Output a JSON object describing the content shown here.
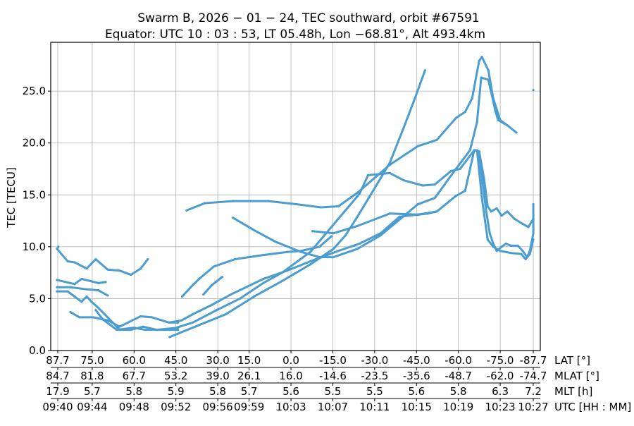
{
  "chart_data": {
    "type": "scatter",
    "title": [
      "Swarm B,  2026 − 01 − 24,  TEC southward,  orbit #67591",
      "Equator:  UTC 10 : 03 : 53,  LT 05.48h,  Lon −68.81°,  Alt 493.4km"
    ],
    "ylabel": "TEC [TECU]",
    "ylim": [
      0,
      29.7
    ],
    "xlim": [
      "09:40:02",
      "10:26:50"
    ],
    "yticks": [
      "0.0",
      "5.0",
      "10.0",
      "15.0",
      "20.0",
      "25.0"
    ],
    "grid": true,
    "color": "#4b9ccf",
    "x_axes": [
      {
        "label": "LAT [°]",
        "ticks": [
          "87.7",
          "75.0",
          "60.0",
          "45.0",
          "30.0",
          "15.0",
          "0.0",
          "-15.0",
          "-30.0",
          "-45.0",
          "-60.0",
          "-75.0",
          "-87.7"
        ]
      },
      {
        "label": "MLAT [°]",
        "ticks": [
          "84.7",
          "81.8",
          "67.7",
          "53.2",
          "39.0",
          "26.1",
          "16.0",
          "-14.6",
          "-23.5",
          "-35.6",
          "-48.7",
          "-62.0",
          "-74.7"
        ]
      },
      {
        "label": "MLT [h]",
        "ticks": [
          "17.9",
          "5.7",
          "5.8",
          "5.9",
          "5.8",
          "5.7",
          "5.6",
          "5.5",
          "5.5",
          "5.6",
          "5.8",
          "6.3",
          "7.2"
        ]
      },
      {
        "label": "UTC [HH : MM]",
        "ticks": [
          "09:40",
          "09:44",
          "09:48",
          "09:52",
          "09:56",
          "09:59",
          "10:03",
          "10:07",
          "10:11",
          "10:15",
          "10:19",
          "10:23",
          "10:27"
        ]
      }
    ],
    "tracks": [
      [
        [
          "09:40:46",
          10.0
        ],
        [
          "09:40:38",
          9.8
        ],
        [
          "09:41:39",
          8.6
        ],
        [
          "09:42:19",
          8.5
        ],
        [
          "09:43:28",
          7.9
        ],
        [
          "09:44:20",
          8.8
        ],
        [
          "09:45:29",
          7.8
        ],
        [
          "09:46:37",
          7.7
        ],
        [
          "09:47:42",
          7.3
        ],
        [
          "09:48:38",
          7.9
        ],
        [
          "09:49:19",
          8.8
        ]
      ],
      [
        [
          "09:40:38",
          6.8
        ],
        [
          "09:42:19",
          6.4
        ],
        [
          "09:42:59",
          6.9
        ],
        [
          "09:44:36",
          6.5
        ],
        [
          "09:45:17",
          6.6
        ]
      ],
      [
        [
          "09:40:38",
          6.1
        ],
        [
          "09:41:55",
          6.1
        ],
        [
          "09:43:28",
          5.9
        ],
        [
          "09:44:36",
          5.8
        ],
        [
          "09:45:29",
          5.3
        ]
      ],
      [
        [
          "09:40:38",
          5.7
        ],
        [
          "09:41:39",
          5.7
        ],
        [
          "09:42:19",
          5.2
        ],
        [
          "09:42:59",
          4.7
        ],
        [
          "09:43:28",
          5.2
        ],
        [
          "09:43:56",
          4.7
        ],
        [
          "09:44:36",
          4.1
        ],
        [
          "09:45:17",
          3.4
        ],
        [
          "09:45:57",
          2.7
        ],
        [
          "09:46:37",
          2.0
        ],
        [
          "09:47:42",
          2.0
        ],
        [
          "09:48:51",
          2.3
        ],
        [
          "09:50:11",
          2.0
        ],
        [
          "09:52:12",
          2.2
        ]
      ],
      [
        [
          "09:41:55",
          3.7
        ],
        [
          "09:42:47",
          3.2
        ],
        [
          "09:44:08",
          3.2
        ],
        [
          "09:45:29",
          2.9
        ],
        [
          "09:46:37",
          2.3
        ],
        [
          "09:48:38",
          3.3
        ],
        [
          "09:49:43",
          3.2
        ],
        [
          "09:51:20",
          2.7
        ],
        [
          "09:52:12",
          2.7
        ]
      ],
      [
        [
          "09:44:20",
          3.9
        ],
        [
          "09:45:01",
          3.0
        ],
        [
          "09:46:21",
          2.0
        ],
        [
          "09:47:58",
          2.2
        ],
        [
          "09:49:03",
          2.0
        ],
        [
          "09:50:11",
          2.0
        ],
        [
          "09:52:12",
          2.0
        ]
      ],
      [
        [
          "09:51:24",
          2.7
        ],
        [
          "09:52:32",
          2.9
        ],
        [
          "09:53:37",
          3.5
        ],
        [
          "09:55:26",
          4.4
        ],
        [
          "09:57:15",
          5.4
        ],
        [
          "10:00:21",
          6.9
        ],
        [
          "10:02:38",
          7.7
        ],
        [
          "10:04:51",
          8.6
        ],
        [
          "10:07:32",
          9.6
        ],
        [
          "10:09:33",
          10.3
        ],
        [
          "10:11:34",
          11.3
        ],
        [
          "10:13:23",
          12.9
        ],
        [
          "10:16:05",
          13.2
        ],
        [
          "10:16:57",
          13.4
        ]
      ],
      [
        [
          "09:51:24",
          2.0
        ],
        [
          "09:53:37",
          2.7
        ],
        [
          "09:55:54",
          3.9
        ],
        [
          "09:58:07",
          5.0
        ],
        [
          "10:00:21",
          6.5
        ],
        [
          "10:02:09",
          7.5
        ],
        [
          "10:04:51",
          9.5
        ],
        [
          "10:07:32",
          12.7
        ],
        [
          "10:09:33",
          15.1
        ],
        [
          "10:10:22",
          16.9
        ],
        [
          "10:12:27",
          17.1
        ],
        [
          "10:13:47",
          16.4
        ],
        [
          "10:15:36",
          15.9
        ],
        [
          "10:16:45",
          16.0
        ],
        [
          "10:18:18",
          17.3
        ],
        [
          "10:19:10",
          17.5
        ],
        [
          "10:20:31",
          19.3
        ],
        [
          "10:20:47",
          19.3
        ],
        [
          "10:21:15",
          14.7
        ],
        [
          "10:21:48",
          10.7
        ],
        [
          "10:22:20",
          10.0
        ],
        [
          "10:23:00",
          9.6
        ],
        [
          "10:24:01",
          9.4
        ],
        [
          "10:25:01",
          9.3
        ],
        [
          "10:25:26",
          8.8
        ],
        [
          "10:25:50",
          9.3
        ],
        [
          "10:26:10",
          10.7
        ]
      ],
      [
        [
          "09:52:36",
          5.2
        ],
        [
          "09:53:25",
          6.1
        ],
        [
          "09:54:13",
          6.9
        ],
        [
          "09:55:38",
          8.1
        ],
        [
          "09:57:39",
          8.8
        ],
        [
          "10:00:21",
          9.2
        ],
        [
          "10:02:38",
          9.5
        ],
        [
          "10:03:58",
          9.6
        ],
        [
          "10:05:43",
          10.0
        ],
        [
          "10:06:52",
          11.0
        ]
      ],
      [
        [
          "09:54:38",
          5.4
        ],
        [
          "09:55:26",
          6.3
        ],
        [
          "09:56:26",
          7.1
        ]
      ],
      [
        [
          "09:53:01",
          13.5
        ],
        [
          "09:54:46",
          14.2
        ],
        [
          "09:57:27",
          14.4
        ],
        [
          "10:00:49",
          14.4
        ],
        [
          "10:03:30",
          14.1
        ],
        [
          "10:05:51",
          13.8
        ],
        [
          "10:07:32",
          13.9
        ],
        [
          "10:09:21",
          15.2
        ],
        [
          "10:12:27",
          17.9
        ],
        [
          "10:15:08",
          19.7
        ],
        [
          "10:16:57",
          20.3
        ],
        [
          "10:18:46",
          22.4
        ],
        [
          "10:19:39",
          23.0
        ],
        [
          "10:20:19",
          24.3
        ],
        [
          "10:20:59",
          27.9
        ],
        [
          "10:21:15",
          28.3
        ],
        [
          "10:21:52",
          27.0
        ],
        [
          "10:22:20",
          24.3
        ],
        [
          "10:23:00",
          22.2
        ],
        [
          "10:23:41",
          21.7
        ],
        [
          "10:24:33",
          21.0
        ]
      ],
      [
        [
          "09:51:24",
          1.3
        ],
        [
          "09:54:05",
          2.4
        ],
        [
          "09:56:47",
          3.5
        ],
        [
          "09:59:28",
          5.2
        ],
        [
          "10:02:09",
          6.7
        ],
        [
          "10:04:51",
          8.3
        ],
        [
          "10:07:04",
          9.8
        ],
        [
          "10:08:13",
          11.1
        ],
        [
          "10:09:21",
          12.9
        ],
        [
          "10:10:26",
          14.7
        ],
        [
          "10:11:34",
          16.6
        ],
        [
          "10:12:27",
          18.1
        ],
        [
          "10:13:47",
          21.5
        ],
        [
          "10:14:44",
          24.0
        ],
        [
          "10:15:49",
          27.0
        ]
      ],
      [
        [
          "09:57:27",
          12.8
        ],
        [
          "09:59:28",
          11.6
        ],
        [
          "10:01:29",
          10.5
        ],
        [
          "10:03:58",
          9.5
        ],
        [
          "10:05:43",
          9.0
        ],
        [
          "10:07:04",
          9.0
        ],
        [
          "10:09:21",
          9.8
        ],
        [
          "10:11:34",
          11.1
        ],
        [
          "10:15:08",
          14.1
        ],
        [
          "10:16:45",
          14.7
        ],
        [
          "10:18:46",
          17.5
        ],
        [
          "10:20:07",
          19.3
        ],
        [
          "10:20:47",
          22.0
        ],
        [
          "10:21:11",
          26.3
        ],
        [
          "10:21:52",
          26.1
        ],
        [
          "10:22:32",
          23.1
        ],
        [
          "10:22:48",
          22.2
        ],
        [
          "10:23:41",
          21.7
        ]
      ],
      [
        [
          "10:05:03",
          11.5
        ],
        [
          "10:07:04",
          11.3
        ],
        [
          "10:09:21",
          12.0
        ],
        [
          "10:12:27",
          13.2
        ],
        [
          "10:15:08",
          13.1
        ],
        [
          "10:16:57",
          13.4
        ],
        [
          "10:18:46",
          14.9
        ],
        [
          "10:19:39",
          15.4
        ],
        [
          "10:20:31",
          19.3
        ],
        [
          "10:20:59",
          19.2
        ],
        [
          "10:21:19",
          16.1
        ],
        [
          "10:21:40",
          13.4
        ],
        [
          "10:22:00",
          11.3
        ],
        [
          "10:22:20",
          10.3
        ],
        [
          "10:22:40",
          9.6
        ],
        [
          "10:23:08",
          10.0
        ],
        [
          "10:23:33",
          10.3
        ],
        [
          "10:24:01",
          10.1
        ],
        [
          "10:24:41",
          10.1
        ],
        [
          "10:25:09",
          9.6
        ],
        [
          "10:25:34",
          9.0
        ],
        [
          "10:25:50",
          9.6
        ],
        [
          "10:26:10",
          11.3
        ],
        [
          "10:26:10",
          14.1
        ]
      ],
      [
        [
          "10:20:59",
          19.2
        ],
        [
          "10:21:27",
          16.6
        ],
        [
          "10:21:48",
          13.9
        ],
        [
          "10:22:08",
          13.4
        ],
        [
          "10:22:40",
          13.7
        ],
        [
          "10:23:08",
          13.0
        ],
        [
          "10:23:41",
          13.4
        ],
        [
          "10:24:21",
          12.7
        ],
        [
          "10:25:09",
          12.2
        ],
        [
          "10:25:42",
          11.9
        ],
        [
          "10:26:10",
          12.7
        ]
      ],
      [
        [
          "10:26:10",
          25.1
        ]
      ]
    ]
  }
}
